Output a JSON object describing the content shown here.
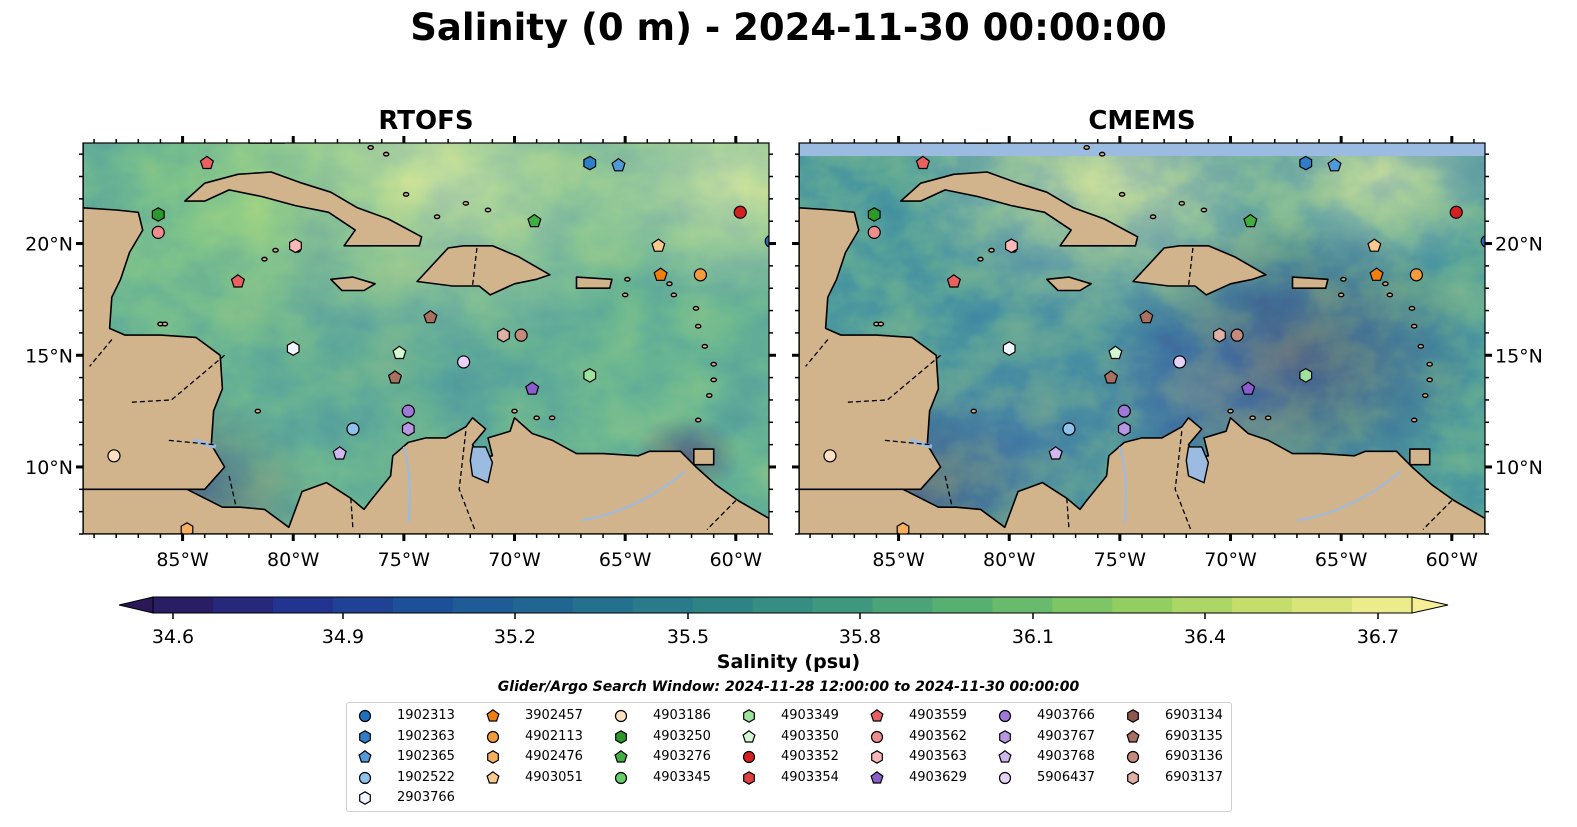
{
  "title": "Salinity (0 m) - 2024-11-30 00:00:00",
  "panels": [
    {
      "title": "RTOFS"
    },
    {
      "title": "CMEMS"
    }
  ],
  "axes": {
    "lon_ticks": [
      "85°W",
      "80°W",
      "75°W",
      "70°W",
      "65°W",
      "60°W"
    ],
    "lat_ticks": [
      "20°N",
      "15°N",
      "10°N"
    ],
    "lon_range": [
      -89.5,
      -58.5
    ],
    "lat_range": [
      7,
      24.5
    ]
  },
  "colorbar": {
    "label": "Salinity (psu)",
    "ticks": [
      "34.6",
      "34.9",
      "35.2",
      "35.5",
      "35.8",
      "36.1",
      "36.4",
      "36.7"
    ],
    "min": 34.6,
    "max": 36.7,
    "extend": "both"
  },
  "search_window": "Glider/Argo Search Window: 2024-11-28 12:00:00 to 2024-11-30 00:00:00",
  "colors": {
    "land": "#d2b48c",
    "water_lake": "#9bbbe0",
    "cmap": [
      "#2a1858",
      "#23318f",
      "#1d529a",
      "#226c91",
      "#2d8186",
      "#3f9a7d",
      "#5db66f",
      "#8fcd5f",
      "#c9df6c",
      "#f7ef95"
    ]
  },
  "legend": [
    {
      "id": "1902313",
      "marker": "circle",
      "color": "#1f6fbf"
    },
    {
      "id": "1902363",
      "marker": "hexagon",
      "color": "#2e7ec9"
    },
    {
      "id": "1902365",
      "marker": "pentagon",
      "color": "#4f9ad8"
    },
    {
      "id": "1902522",
      "marker": "circle",
      "color": "#8ec2ea"
    },
    {
      "id": "2903766",
      "marker": "hexagon",
      "color": "#f0f6ff"
    },
    {
      "id": "3902457",
      "marker": "pentagon",
      "color": "#f07f10"
    },
    {
      "id": "4902113",
      "marker": "circle",
      "color": "#f59a3a"
    },
    {
      "id": "4902476",
      "marker": "hexagon",
      "color": "#f7b060"
    },
    {
      "id": "4903051",
      "marker": "pentagon",
      "color": "#fbc98d"
    },
    {
      "id": "4903186",
      "marker": "circle",
      "color": "#fde0c2"
    },
    {
      "id": "4903250",
      "marker": "hexagon",
      "color": "#2a9a2a"
    },
    {
      "id": "4903276",
      "marker": "pentagon",
      "color": "#3fb03f"
    },
    {
      "id": "4903345",
      "marker": "circle",
      "color": "#66cc66"
    },
    {
      "id": "4903349",
      "marker": "hexagon",
      "color": "#9de39d"
    },
    {
      "id": "4903350",
      "marker": "pentagon",
      "color": "#d2f7d2"
    },
    {
      "id": "4903352",
      "marker": "circle",
      "color": "#d42020"
    },
    {
      "id": "4903354",
      "marker": "hexagon",
      "color": "#e04040"
    },
    {
      "id": "4903559",
      "marker": "pentagon",
      "color": "#ea6060"
    },
    {
      "id": "4903562",
      "marker": "circle",
      "color": "#f08c8c"
    },
    {
      "id": "4903563",
      "marker": "hexagon",
      "color": "#fab8b8"
    },
    {
      "id": "4903629",
      "marker": "pentagon",
      "color": "#8a5ccc"
    },
    {
      "id": "4903766",
      "marker": "circle",
      "color": "#a078d8"
    },
    {
      "id": "4903767",
      "marker": "hexagon",
      "color": "#b896e2"
    },
    {
      "id": "4903768",
      "marker": "pentagon",
      "color": "#d0b8ee"
    },
    {
      "id": "5906437",
      "marker": "circle",
      "color": "#e6d2f7"
    },
    {
      "id": "6903134",
      "marker": "hexagon",
      "color": "#8c5a4c"
    },
    {
      "id": "6903135",
      "marker": "pentagon",
      "color": "#a8705e"
    },
    {
      "id": "6903136",
      "marker": "circle",
      "color": "#c48a7c"
    },
    {
      "id": "6903137",
      "marker": "hexagon",
      "color": "#e0b0a4"
    }
  ],
  "stations": [
    {
      "id": "4903559",
      "lon": -83.9,
      "lat": 23.6
    },
    {
      "id": "4903250",
      "lon": -86.1,
      "lat": 21.3
    },
    {
      "id": "4903562",
      "lon": -86.1,
      "lat": 20.5
    },
    {
      "id": "4903563",
      "lon": -79.9,
      "lat": 19.9
    },
    {
      "id": "4903559",
      "lon": -82.5,
      "lat": 18.3
    },
    {
      "id": "1902363",
      "lon": -66.6,
      "lat": 23.6
    },
    {
      "id": "1902365",
      "lon": -65.3,
      "lat": 23.5
    },
    {
      "id": "4903276",
      "lon": -69.1,
      "lat": 21.0
    },
    {
      "id": "4903352",
      "lon": -59.8,
      "lat": 21.4
    },
    {
      "id": "1902313",
      "lon": -58.4,
      "lat": 20.1
    },
    {
      "id": "4903051",
      "lon": -63.5,
      "lat": 19.9
    },
    {
      "id": "3902457",
      "lon": -63.4,
      "lat": 18.6
    },
    {
      "id": "4902113",
      "lon": -61.6,
      "lat": 18.6
    },
    {
      "id": "6903135",
      "lon": -73.8,
      "lat": 16.7
    },
    {
      "id": "6903137",
      "lon": -70.5,
      "lat": 15.9
    },
    {
      "id": "6903136",
      "lon": -69.7,
      "lat": 15.9
    },
    {
      "id": "2903766",
      "lon": -80.0,
      "lat": 15.3
    },
    {
      "id": "4903350",
      "lon": -75.2,
      "lat": 15.1
    },
    {
      "id": "5906437",
      "lon": -72.3,
      "lat": 14.7
    },
    {
      "id": "4903349",
      "lon": -66.6,
      "lat": 14.1
    },
    {
      "id": "6903135",
      "lon": -75.4,
      "lat": 14.0
    },
    {
      "id": "4903629",
      "lon": -69.2,
      "lat": 13.5
    },
    {
      "id": "4903766",
      "lon": -74.8,
      "lat": 12.5
    },
    {
      "id": "1902522",
      "lon": -77.3,
      "lat": 11.7
    },
    {
      "id": "4903767",
      "lon": -74.8,
      "lat": 11.7
    },
    {
      "id": "4903768",
      "lon": -77.9,
      "lat": 10.6
    },
    {
      "id": "4903186",
      "lon": -88.1,
      "lat": 10.5
    },
    {
      "id": "4902476",
      "lon": -84.8,
      "lat": 7.2
    }
  ]
}
